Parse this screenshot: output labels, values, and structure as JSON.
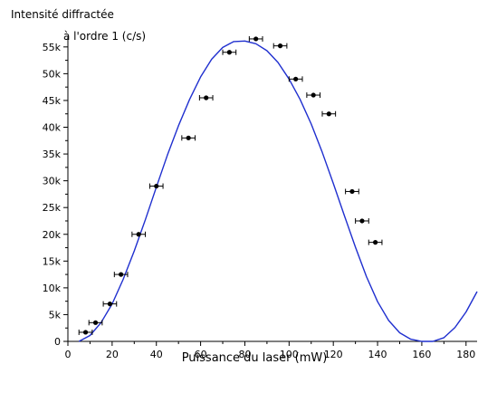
{
  "chart_data": {
    "type": "scatter",
    "ylabel_lines": [
      "Intensité diffractée",
      "à l'ordre 1 (c/s)"
    ],
    "xlabel": "Puissance du laser (mW)",
    "xlim": [
      0,
      185
    ],
    "ylim": [
      0,
      57000
    ],
    "x_ticks": [
      0,
      20,
      40,
      60,
      80,
      100,
      120,
      140,
      160,
      180
    ],
    "x_tick_labels": [
      "0",
      "20",
      "40",
      "60",
      "80",
      "100",
      "120",
      "140",
      "160",
      "180"
    ],
    "y_ticks": [
      0,
      5000,
      10000,
      15000,
      20000,
      25000,
      30000,
      35000,
      40000,
      45000,
      50000,
      55000
    ],
    "y_tick_labels": [
      "0",
      "5k",
      "10k",
      "15k",
      "20k",
      "25k",
      "30k",
      "35k",
      "40k",
      "45k",
      "50k",
      "55k"
    ],
    "grid": false,
    "series": [
      {
        "kind": "points",
        "color": "#000000",
        "x": [
          8,
          12.5,
          19,
          24,
          32,
          40,
          54.5,
          62.5,
          73,
          85,
          96,
          103,
          111,
          118,
          128.5,
          133,
          139
        ],
        "y": [
          1700,
          3500,
          7000,
          12500,
          20000,
          29000,
          38000,
          45500,
          54000,
          56500,
          55200,
          49000,
          46000,
          42500,
          28000,
          22500,
          18500
        ],
        "xerr": [
          3,
          3,
          3,
          3,
          3,
          3,
          3,
          3,
          3,
          3,
          3,
          3,
          3,
          3,
          3,
          3,
          3
        ]
      },
      {
        "kind": "fit",
        "color": "#1f2fcf",
        "x": [
          5,
          10,
          15,
          20,
          25,
          30,
          35,
          40,
          45,
          50,
          55,
          60,
          65,
          70,
          75,
          80,
          85,
          90,
          95,
          100,
          105,
          110,
          115,
          120,
          125,
          130,
          135,
          140,
          145,
          150,
          155,
          160,
          165,
          170,
          175,
          180,
          185
        ],
        "y": [
          0,
          1100,
          3500,
          7000,
          11600,
          16900,
          22700,
          28800,
          34800,
          40300,
          45200,
          49400,
          52700,
          54900,
          56000,
          56100,
          55600,
          54300,
          52100,
          49000,
          45200,
          40600,
          35300,
          29500,
          23500,
          17600,
          12100,
          7400,
          3900,
          1600,
          400,
          0,
          0,
          700,
          2600,
          5500,
          9300
        ]
      }
    ]
  }
}
